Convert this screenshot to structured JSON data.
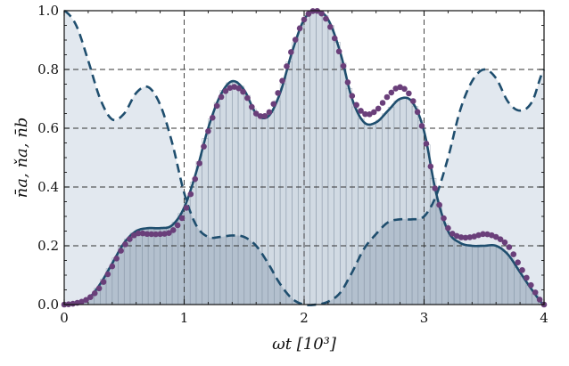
{
  "chart_data": {
    "type": "line",
    "xlabel": "ωt [10³]",
    "ylabel": "n̄a, ňa, n̄b",
    "xlim": [
      0,
      4
    ],
    "ylim": [
      0,
      1.0
    ],
    "x_ticks": [
      "0",
      "1",
      "2",
      "3",
      "4"
    ],
    "y_ticks": [
      "0.0",
      "0.2",
      "0.4",
      "0.6",
      "0.8",
      "1.0"
    ],
    "grid": "dashed",
    "colors": {
      "line": "#1f4e6e",
      "dots": "#6a3f7a",
      "fill_light": "#e2e8ef",
      "fill_mid": "#c9d3de",
      "fill_dark": "#a9b8c7",
      "bar_stroke": "#8896a6"
    },
    "series": [
      {
        "style": "solid",
        "x": [
          0,
          0.1,
          0.2,
          0.3,
          0.4,
          0.5,
          0.6,
          0.7,
          0.8,
          0.9,
          1.0,
          1.1,
          1.2,
          1.3,
          1.4,
          1.5,
          1.6,
          1.7,
          1.8,
          1.9,
          2.0,
          2.1,
          2.2,
          2.3,
          2.4,
          2.5,
          2.6,
          2.7,
          2.8,
          2.9,
          3.0,
          3.1,
          3.2,
          3.3,
          3.4,
          3.5,
          3.6,
          3.7,
          3.8,
          3.9,
          4.0
        ],
        "y": [
          0.0,
          0.005,
          0.02,
          0.07,
          0.14,
          0.21,
          0.25,
          0.26,
          0.26,
          0.27,
          0.33,
          0.45,
          0.6,
          0.71,
          0.76,
          0.73,
          0.65,
          0.64,
          0.72,
          0.86,
          0.97,
          1.0,
          0.97,
          0.86,
          0.7,
          0.62,
          0.62,
          0.66,
          0.7,
          0.69,
          0.59,
          0.38,
          0.25,
          0.21,
          0.2,
          0.2,
          0.2,
          0.17,
          0.11,
          0.05,
          0.0
        ]
      },
      {
        "style": "dotted",
        "x": [
          0,
          0.1,
          0.2,
          0.3,
          0.4,
          0.5,
          0.6,
          0.7,
          0.8,
          0.9,
          1.0,
          1.1,
          1.2,
          1.3,
          1.4,
          1.5,
          1.6,
          1.7,
          1.8,
          1.9,
          2.0,
          2.1,
          2.2,
          2.3,
          2.4,
          2.5,
          2.6,
          2.7,
          2.8,
          2.9,
          3.0,
          3.1,
          3.2,
          3.3,
          3.4,
          3.5,
          3.6,
          3.7,
          3.8,
          3.9,
          4.0
        ],
        "y": [
          0.0,
          0.005,
          0.02,
          0.06,
          0.13,
          0.2,
          0.24,
          0.24,
          0.24,
          0.25,
          0.31,
          0.44,
          0.59,
          0.7,
          0.74,
          0.72,
          0.65,
          0.65,
          0.74,
          0.87,
          0.97,
          1.0,
          0.96,
          0.85,
          0.71,
          0.65,
          0.66,
          0.71,
          0.74,
          0.7,
          0.58,
          0.38,
          0.26,
          0.23,
          0.23,
          0.24,
          0.23,
          0.2,
          0.13,
          0.06,
          0.0
        ]
      },
      {
        "style": "dashed",
        "x": [
          0,
          0.1,
          0.2,
          0.3,
          0.4,
          0.5,
          0.6,
          0.7,
          0.8,
          0.9,
          1.0,
          1.1,
          1.2,
          1.3,
          1.4,
          1.5,
          1.6,
          1.7,
          1.8,
          1.9,
          2.0,
          2.1,
          2.2,
          2.3,
          2.4,
          2.5,
          2.6,
          2.7,
          2.8,
          2.9,
          3.0,
          3.1,
          3.2,
          3.3,
          3.4,
          3.5,
          3.6,
          3.7,
          3.8,
          3.9,
          4.0
        ],
        "y": [
          1.0,
          0.95,
          0.83,
          0.7,
          0.63,
          0.65,
          0.72,
          0.74,
          0.68,
          0.55,
          0.38,
          0.27,
          0.23,
          0.23,
          0.235,
          0.23,
          0.2,
          0.14,
          0.07,
          0.02,
          0.0,
          0.0,
          0.01,
          0.04,
          0.11,
          0.19,
          0.24,
          0.28,
          0.29,
          0.29,
          0.3,
          0.37,
          0.5,
          0.66,
          0.76,
          0.8,
          0.77,
          0.69,
          0.66,
          0.69,
          0.8
        ]
      }
    ]
  }
}
